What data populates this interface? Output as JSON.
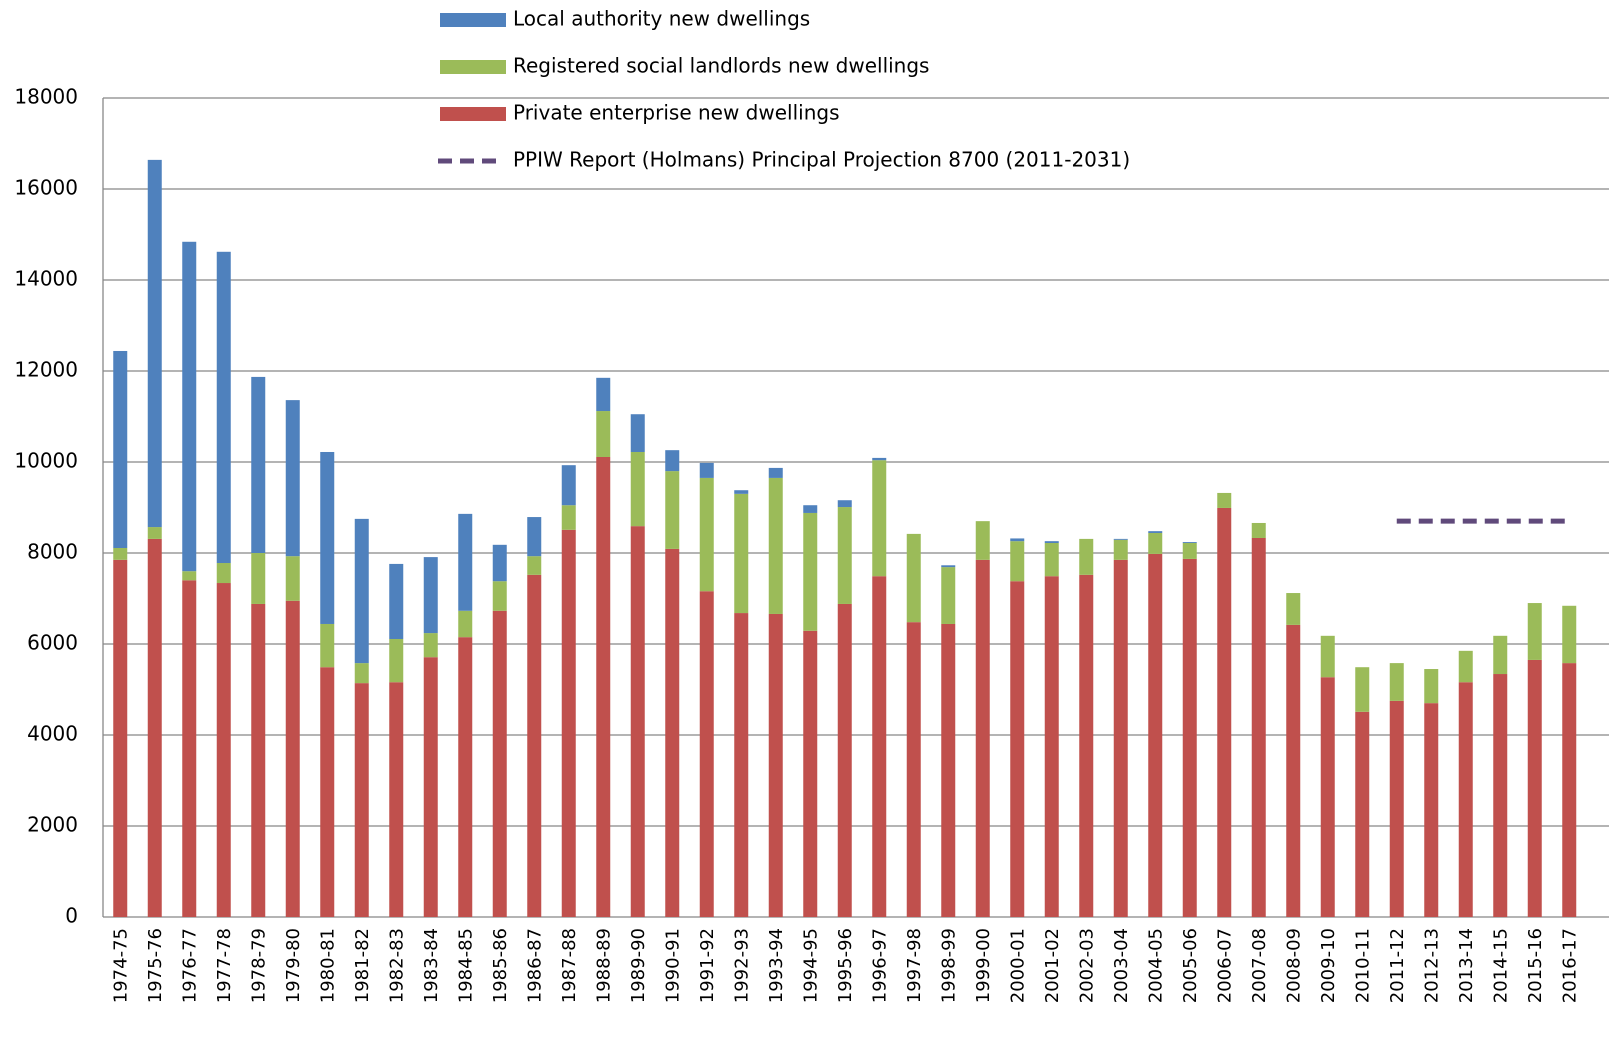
{
  "chart_data": {
    "type": "bar",
    "stacked": true,
    "categories": [
      "1974-75",
      "1975-76",
      "1976-77",
      "1977-78",
      "1978-79",
      "1979-80",
      "1980-81",
      "1981-82",
      "1982-83",
      "1983-84",
      "1984-85",
      "1985-86",
      "1986-87",
      "1987-88",
      "1988-89",
      "1989-90",
      "1990-91",
      "1991-92",
      "1992-93",
      "1993-94",
      "1994-95",
      "1995-96",
      "1996-97",
      "1997-98",
      "1998-99",
      "1999-00",
      "2000-01",
      "2001-02",
      "2002-03",
      "2003-04",
      "2004-05",
      "2005-06",
      "2006-07",
      "2007-08",
      "2008-09",
      "2009-10",
      "2010-11",
      "2011-12",
      "2012-13",
      "2013-14",
      "2014-15",
      "2015-16",
      "2016-17"
    ],
    "series": [
      {
        "name": "Private enterprise new dwellings",
        "color": "#c0504d",
        "values": [
          7850,
          8310,
          7400,
          7340,
          6880,
          6950,
          5490,
          5140,
          5160,
          5710,
          6150,
          6730,
          7520,
          8510,
          10110,
          8590,
          8090,
          7160,
          6680,
          6660,
          6290,
          6880,
          7490,
          6480,
          6440,
          7850,
          7380,
          7490,
          7520,
          7850,
          7980,
          7870,
          8990,
          8330,
          6420,
          5270,
          4510,
          4750,
          4700,
          5160,
          5340,
          5650,
          5580
        ]
      },
      {
        "name": "Registered social landlords new dwellings",
        "color": "#9bbb59",
        "values": [
          260,
          260,
          200,
          440,
          1120,
          980,
          950,
          440,
          950,
          530,
          580,
          650,
          410,
          540,
          1010,
          1630,
          1710,
          2490,
          2620,
          2990,
          2590,
          2130,
          2550,
          1940,
          1250,
          850,
          880,
          730,
          790,
          440,
          460,
          350,
          330,
          330,
          700,
          910,
          980,
          830,
          750,
          690,
          840,
          1250,
          1260
        ]
      },
      {
        "name": "Local authority new dwellings",
        "color": "#4f81bd",
        "values": [
          4330,
          8070,
          7240,
          6840,
          3870,
          3430,
          3780,
          3170,
          1650,
          1670,
          2130,
          800,
          860,
          880,
          730,
          830,
          460,
          330,
          80,
          220,
          170,
          150,
          50,
          0,
          40,
          0,
          60,
          40,
          0,
          20,
          40,
          20,
          0,
          0,
          0,
          0,
          0,
          0,
          0,
          0,
          0,
          0,
          0
        ]
      },
      {
        "name": "PPIW Report (Holmans) Principal Projection 8700 (2011-2031)",
        "color": "#604a7b",
        "type": "line",
        "dashed": true,
        "values": [
          null,
          null,
          null,
          null,
          null,
          null,
          null,
          null,
          null,
          null,
          null,
          null,
          null,
          null,
          null,
          null,
          null,
          null,
          null,
          null,
          null,
          null,
          null,
          null,
          null,
          null,
          null,
          null,
          null,
          null,
          null,
          null,
          null,
          null,
          null,
          null,
          null,
          8700,
          8700,
          8700,
          8700,
          8700,
          8700
        ]
      }
    ],
    "ylim": [
      0,
      18000
    ],
    "yticks": [
      0,
      2000,
      4000,
      6000,
      8000,
      10000,
      12000,
      14000,
      16000,
      18000
    ],
    "grid": true
  }
}
